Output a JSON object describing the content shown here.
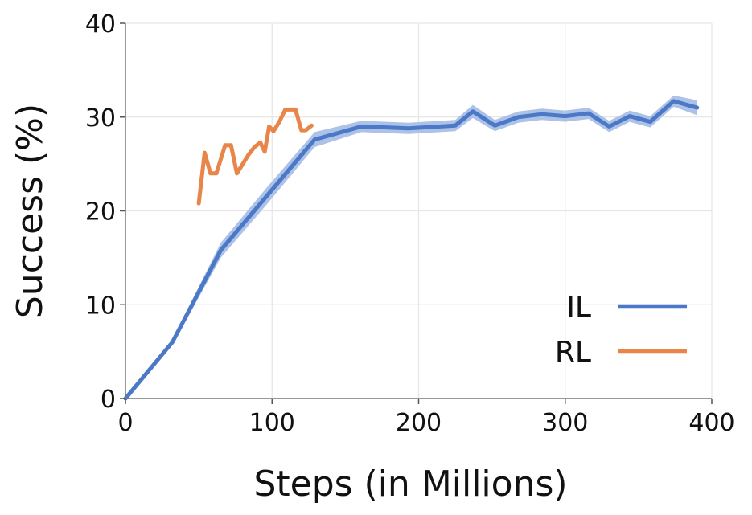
{
  "chart_data": {
    "type": "line",
    "xlabel": "Steps (in Millions)",
    "ylabel": "Success (%)",
    "xlim": [
      0,
      400
    ],
    "ylim": [
      0,
      40
    ],
    "xticks": [
      0,
      100,
      200,
      300,
      400
    ],
    "yticks": [
      0,
      10,
      20,
      30,
      40
    ],
    "grid": true,
    "legend": "lower-right",
    "series": [
      {
        "name": "IL",
        "color": "#4c78c8",
        "band_color": "#a9bfe6",
        "x": [
          0,
          32,
          65,
          97,
          129,
          161,
          193,
          225,
          237,
          252,
          268,
          284,
          300,
          316,
          330,
          344,
          358,
          374,
          390
        ],
        "y": [
          0,
          6,
          15.8,
          21.7,
          27.6,
          29.0,
          28.8,
          29.1,
          30.6,
          29.1,
          30.0,
          30.3,
          30.1,
          30.4,
          29.0,
          30.1,
          29.5,
          31.7,
          31.0
        ],
        "err": [
          0,
          0.3,
          0.8,
          0.9,
          0.8,
          0.6,
          0.6,
          0.6,
          0.7,
          0.6,
          0.6,
          0.6,
          0.6,
          0.6,
          0.6,
          0.6,
          0.6,
          0.6,
          0.8
        ]
      },
      {
        "name": "RL",
        "color": "#e8864a",
        "x": [
          50,
          54,
          58,
          62,
          68,
          72,
          76,
          80,
          84,
          88,
          92,
          95,
          98,
          101,
          105,
          109,
          112,
          116,
          120,
          123,
          127
        ],
        "y": [
          20.8,
          26.2,
          24.0,
          24.0,
          27.0,
          27.0,
          24.0,
          25.0,
          26.0,
          26.8,
          27.3,
          26.3,
          29.0,
          28.5,
          29.5,
          30.8,
          30.8,
          30.8,
          28.6,
          28.6,
          29.1
        ]
      }
    ]
  }
}
